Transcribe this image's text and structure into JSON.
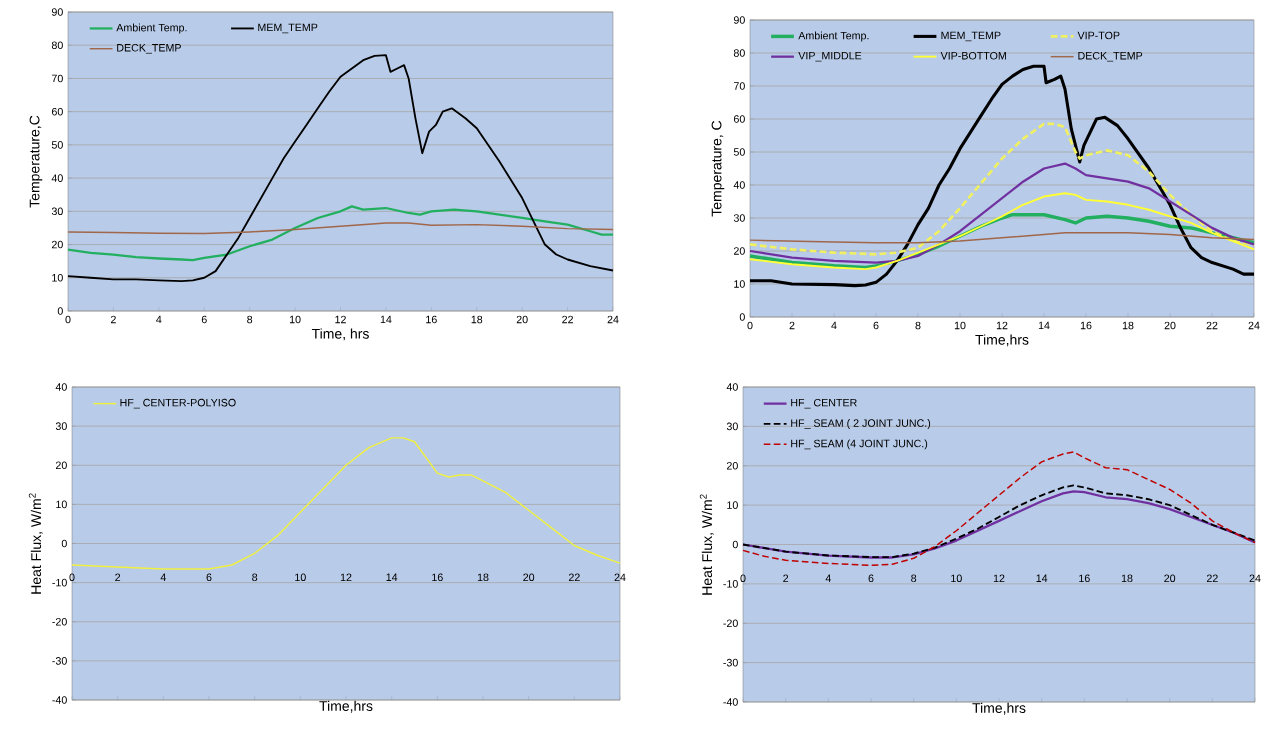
{
  "chart_data": [
    {
      "type": "line",
      "xlabel": "Time, hrs",
      "ylabel": "Temperature,C",
      "xlim": [
        0,
        24
      ],
      "ylim": [
        0,
        90
      ],
      "xticks": [
        0,
        2,
        4,
        6,
        8,
        10,
        12,
        14,
        16,
        18,
        20,
        22,
        24
      ],
      "yticks": [
        0,
        10,
        20,
        30,
        40,
        50,
        60,
        70,
        80,
        90
      ],
      "grid": "y",
      "legend": "top left",
      "series": [
        {
          "name": "Ambient Temp.",
          "color": "#22b060",
          "line_style": "solid",
          "x": [
            0,
            1,
            2,
            3,
            4,
            5,
            5.5,
            6,
            7,
            8,
            9,
            10,
            11,
            12,
            12.5,
            13,
            14,
            15,
            15.5,
            16,
            17,
            18,
            19,
            20,
            21,
            22,
            23,
            23.5,
            24
          ],
          "values": [
            18.5,
            17.5,
            17,
            16.2,
            15.8,
            15.5,
            15.3,
            16,
            17,
            19.5,
            21.5,
            25,
            28,
            30,
            31.5,
            30.5,
            31,
            29.5,
            29,
            30,
            30.5,
            30,
            29,
            28,
            27,
            26,
            24,
            23,
            23
          ]
        },
        {
          "name": "MEM_TEMP",
          "color": "#000000",
          "line_style": "solid",
          "x": [
            0,
            1,
            2,
            3,
            4,
            5,
            5.5,
            6,
            6.5,
            7,
            7.5,
            8,
            8.5,
            9,
            9.5,
            10,
            10.5,
            11,
            11.5,
            12,
            12.5,
            13,
            13.5,
            14,
            14.2,
            14.5,
            14.8,
            15,
            15.3,
            15.6,
            15.9,
            16.2,
            16.5,
            16.9,
            17.5,
            18,
            19,
            20,
            20.5,
            21,
            21.5,
            22,
            23,
            24
          ],
          "values": [
            10.5,
            10,
            9.5,
            9.5,
            9.2,
            9,
            9.2,
            10,
            12,
            17,
            22,
            28,
            34,
            40,
            46,
            51,
            56,
            61,
            66,
            70.5,
            73,
            75.5,
            76.8,
            77,
            72,
            73,
            74,
            70,
            58,
            47.5,
            54,
            56,
            60,
            61,
            58,
            55,
            45,
            34,
            27,
            20,
            17,
            15.5,
            13.5,
            12.2
          ]
        },
        {
          "name": "DECK_TEMP",
          "color": "#a0674a",
          "line_style": "solid",
          "x": [
            0,
            2,
            4,
            6,
            8,
            10,
            12,
            14,
            15,
            16,
            18,
            20,
            22,
            24
          ],
          "values": [
            23.8,
            23.6,
            23.4,
            23.3,
            23.8,
            24.5,
            25.5,
            26.5,
            26.5,
            25.8,
            26,
            25.5,
            24.8,
            24.5
          ]
        }
      ]
    },
    {
      "type": "line",
      "xlabel": "Time,hrs",
      "ylabel": "Temperature, C",
      "xlim": [
        0,
        24
      ],
      "ylim": [
        0,
        90
      ],
      "xticks": [
        0,
        2,
        4,
        6,
        8,
        10,
        12,
        14,
        16,
        18,
        20,
        22,
        24
      ],
      "yticks": [
        0,
        10,
        20,
        30,
        40,
        50,
        60,
        70,
        80,
        90
      ],
      "grid": "y",
      "legend": "top left",
      "series": [
        {
          "name": "Ambient Temp.",
          "color": "#22b060",
          "line_style": "solid",
          "x": [
            0,
            2,
            4,
            5.5,
            6,
            7,
            8,
            9,
            10,
            11,
            12,
            12.5,
            13,
            14,
            15,
            15.5,
            16,
            17,
            18,
            19,
            20,
            21,
            22,
            23,
            24
          ],
          "values": [
            18.5,
            16.5,
            15.5,
            15,
            15.5,
            17,
            19,
            21.5,
            24.5,
            27.5,
            30,
            31,
            31,
            31,
            29.5,
            28.5,
            30,
            30.5,
            30,
            29,
            27.5,
            27,
            25.5,
            24,
            22.5
          ]
        },
        {
          "name": "MEM_TEMP",
          "color": "#000000",
          "line_style": "solid",
          "x": [
            0,
            1,
            2,
            4,
            5,
            5.5,
            6,
            6.5,
            7,
            7.5,
            8,
            8.5,
            9,
            9.5,
            10,
            10.5,
            11,
            11.5,
            12,
            12.5,
            13,
            13.5,
            14,
            14.1,
            14.5,
            14.8,
            15,
            15.3,
            15.7,
            15.9,
            16.2,
            16.5,
            16.9,
            17.5,
            18,
            19,
            20,
            20.5,
            21,
            21.5,
            22,
            23,
            23.5,
            24
          ],
          "values": [
            11,
            11,
            10,
            9.8,
            9.5,
            9.7,
            10.5,
            13,
            17,
            22,
            28,
            33,
            40,
            45,
            51,
            56,
            61,
            66,
            70.5,
            73,
            75,
            76,
            76,
            71,
            72,
            73,
            69,
            57,
            47,
            52,
            56,
            60,
            60.5,
            58,
            54,
            45,
            34,
            27,
            21,
            18,
            16.5,
            14.5,
            13,
            13
          ]
        },
        {
          "name": "VIP-TOP",
          "color": "#f0f060",
          "line_style": "dashed",
          "x": [
            0,
            2,
            4,
            6,
            7,
            8,
            9,
            10,
            11,
            12,
            13,
            14,
            14.5,
            15,
            15.5,
            15.7,
            16,
            17,
            18,
            19,
            20,
            21,
            22,
            23,
            24
          ],
          "values": [
            22,
            20.5,
            19.5,
            19,
            19.5,
            21,
            26,
            33,
            40.5,
            48,
            54,
            58.5,
            58.5,
            57.5,
            50,
            48,
            49,
            50.5,
            49,
            44,
            37,
            31,
            26,
            23,
            22
          ]
        },
        {
          "name": "VIP_MIDDLE",
          "color": "#7030a0",
          "line_style": "solid",
          "x": [
            0,
            2,
            4,
            6,
            7,
            8,
            9,
            10,
            11,
            12,
            13,
            14,
            15,
            15.5,
            16,
            17,
            18,
            19,
            20,
            21,
            22,
            23,
            24
          ],
          "values": [
            20,
            18,
            17,
            16.5,
            17,
            18.5,
            22,
            26,
            31,
            36,
            41,
            45,
            46.5,
            45,
            43,
            42,
            41,
            39,
            35,
            31,
            27,
            24,
            22
          ]
        },
        {
          "name": "VIP-BOTTOM",
          "color": "#ffff33",
          "line_style": "solid",
          "x": [
            0,
            2,
            4,
            5.5,
            6,
            7,
            8,
            9,
            10,
            11,
            12,
            13,
            14,
            15,
            15.5,
            16,
            17,
            18,
            19,
            20,
            21,
            22,
            23,
            24
          ],
          "values": [
            17.5,
            16,
            15,
            14.5,
            15,
            17,
            19.5,
            22,
            24.5,
            27.5,
            30.5,
            34,
            36.5,
            37.5,
            37,
            35.5,
            35,
            34,
            32.5,
            30.5,
            28.5,
            25.5,
            23,
            20.5
          ]
        },
        {
          "name": "DECK_TEMP",
          "color": "#a0674a",
          "line_style": "solid",
          "x": [
            0,
            2,
            4,
            6,
            8,
            10,
            12,
            14,
            15,
            16,
            18,
            20,
            22,
            24
          ],
          "values": [
            23.3,
            23,
            22.7,
            22.5,
            22.5,
            23,
            24,
            25,
            25.5,
            25.5,
            25.5,
            25,
            24,
            23.5
          ]
        }
      ]
    },
    {
      "type": "line",
      "xlabel": "Time,hrs",
      "ylabel": "Heat Flux, W/m$^{2}$",
      "xlim": [
        0,
        24
      ],
      "ylim": [
        -40,
        40
      ],
      "xticks": [
        0,
        2,
        4,
        6,
        8,
        10,
        12,
        14,
        16,
        18,
        20,
        22,
        24
      ],
      "yticks": [
        -40,
        -30,
        -20,
        -10,
        0,
        10,
        20,
        30,
        40
      ],
      "grid": "y",
      "legend": "top left",
      "series": [
        {
          "name": "HF_ CENTER-POLYISO",
          "color": "#f0f040",
          "line_style": "solid",
          "x": [
            0,
            2,
            4,
            6,
            7,
            8,
            9,
            10,
            11,
            12,
            13,
            14,
            14.5,
            15,
            15.5,
            16,
            16.5,
            17,
            17.5,
            18,
            19,
            20,
            21,
            22,
            23,
            24
          ],
          "values": [
            -5.5,
            -6,
            -6.5,
            -6.5,
            -5.5,
            -2.5,
            2,
            8,
            14,
            20,
            24.5,
            27,
            27,
            26,
            22,
            18,
            17,
            17.5,
            17.5,
            16,
            13,
            8.5,
            4,
            -0.5,
            -3,
            -5
          ]
        }
      ]
    },
    {
      "type": "line",
      "xlabel": "Time,hrs",
      "ylabel": "Heat Flux, W/m$^{2}$",
      "xlim": [
        0,
        24
      ],
      "ylim": [
        -40,
        40
      ],
      "xticks": [
        0,
        2,
        4,
        6,
        8,
        10,
        12,
        14,
        16,
        18,
        20,
        22,
        24
      ],
      "yticks": [
        -40,
        -30,
        -20,
        -10,
        0,
        10,
        20,
        30,
        40
      ],
      "grid": "y",
      "legend": "top left",
      "series": [
        {
          "name": "HF_ CENTER",
          "color": "#7030a0",
          "line_style": "solid",
          "x": [
            0,
            2,
            4,
            6,
            7,
            8,
            9,
            10,
            11,
            12,
            13,
            14,
            15,
            15.5,
            16,
            17,
            18,
            19,
            20,
            21,
            22,
            23,
            24
          ],
          "values": [
            0,
            -1.8,
            -2.8,
            -3.3,
            -3.3,
            -2.5,
            -1,
            1,
            3.5,
            6,
            8.5,
            11,
            13,
            13.5,
            13.3,
            12,
            11.5,
            10.5,
            9,
            7,
            5,
            3,
            0.5
          ]
        },
        {
          "name": "HF_ SEAM ( 2 JOINT JUNC.)",
          "color": "#000000",
          "line_style": "dashed",
          "x": [
            0,
            2,
            4,
            6,
            7,
            8,
            9,
            10,
            11,
            12,
            13,
            14,
            15,
            15.5,
            16,
            17,
            18,
            19,
            20,
            21,
            22,
            23,
            24
          ],
          "values": [
            0,
            -1.8,
            -2.8,
            -3.2,
            -3.2,
            -2.3,
            -0.8,
            1.5,
            4,
            7,
            10,
            12.5,
            14.5,
            15,
            14.5,
            13,
            12.5,
            11.5,
            10,
            7.5,
            5,
            3,
            1
          ]
        },
        {
          "name": "HF_ SEAM (4 JOINT JUNC.)",
          "color": "#c00000",
          "line_style": "dashed",
          "x": [
            0,
            1,
            2,
            4,
            6,
            7,
            8,
            9,
            10,
            11,
            12,
            13,
            14,
            15,
            15.5,
            16,
            17,
            18,
            19,
            20,
            21,
            22,
            23,
            24
          ],
          "values": [
            -1.5,
            -3,
            -4,
            -4.8,
            -5.3,
            -5,
            -3.5,
            -0.5,
            3.5,
            8,
            12.5,
            17,
            21,
            23,
            23.5,
            22,
            19.5,
            19,
            16.5,
            14,
            10.5,
            6,
            3,
            0.5
          ]
        }
      ]
    }
  ]
}
